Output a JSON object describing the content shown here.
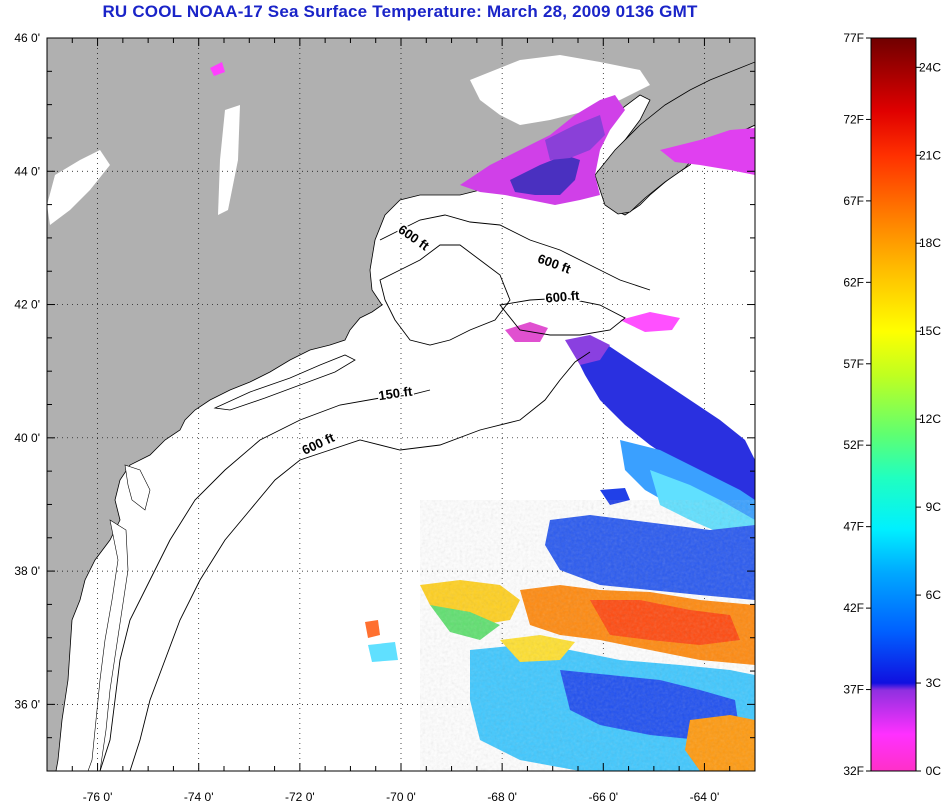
{
  "title": "RU COOL  NOAA-17  Sea Surface Temperature:  March 28, 2009 0136 GMT",
  "colors": {
    "title": "#1a24c8",
    "land": "#b0b0b0",
    "ocean": "#ffffff",
    "coast": "#000000"
  },
  "map": {
    "lon_range": [
      -77,
      -63
    ],
    "lat_range": [
      35,
      46
    ],
    "lon_ticks": [
      {
        "value": -76,
        "label": "-76 0'"
      },
      {
        "value": -74,
        "label": "-74 0'"
      },
      {
        "value": -72,
        "label": "-72 0'"
      },
      {
        "value": -70,
        "label": "-70 0'"
      },
      {
        "value": -68,
        "label": "-68 0'"
      },
      {
        "value": -66,
        "label": "-66 0'"
      },
      {
        "value": -64,
        "label": "-64 0'"
      }
    ],
    "lat_ticks": [
      {
        "value": 46,
        "label": "46 0'"
      },
      {
        "value": 44,
        "label": "44 0'"
      },
      {
        "value": 42,
        "label": "42 0'"
      },
      {
        "value": 40,
        "label": "40 0'"
      },
      {
        "value": 38,
        "label": "38 0'"
      },
      {
        "value": 36,
        "label": "36 0'"
      }
    ],
    "grid": true,
    "depth_labels": [
      {
        "text": "600 ft",
        "lon": -69.8,
        "lat": 42.95,
        "rot": 35
      },
      {
        "text": "600 ft",
        "lon": -67.0,
        "lat": 42.55,
        "rot": 20
      },
      {
        "text": "600 ft",
        "lon": -66.8,
        "lat": 42.05,
        "rot": -5
      },
      {
        "text": "150 ft",
        "lon": -70.1,
        "lat": 40.6,
        "rot": -8
      },
      {
        "text": "600 ft",
        "lon": -71.6,
        "lat": 39.85,
        "rot": -25
      }
    ]
  },
  "colorbar": {
    "left_labels": [
      "77F",
      "72F",
      "67F",
      "62F",
      "57F",
      "52F",
      "47F",
      "42F",
      "37F",
      "32F"
    ],
    "right_labels": [
      "24C",
      "21C",
      "18C",
      "15C",
      "12C",
      "9C",
      "6C",
      "3C",
      "0C"
    ],
    "stops": [
      "#7a0000",
      "#d40000",
      "#ff2a00",
      "#ff8000",
      "#ffd200",
      "#f0ff00",
      "#90ff40",
      "#30ffb0",
      "#00f0ff",
      "#00a0ff",
      "#2040ff",
      "#1010d0",
      "#8030e0",
      "#ff20ff",
      "#ff30d0"
    ]
  }
}
